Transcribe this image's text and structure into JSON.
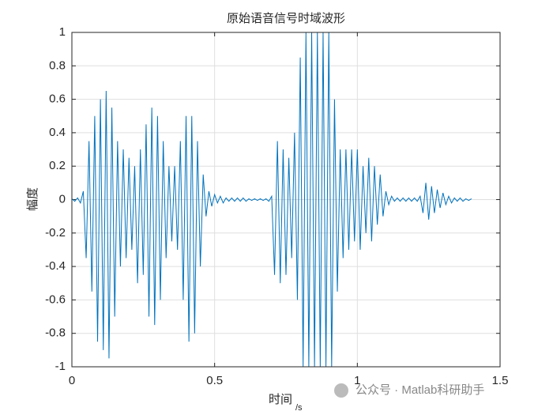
{
  "chart_data": {
    "type": "line",
    "title": "原始语音信号时域波形",
    "xlabel": "时间",
    "xlabel_subscript": "/s",
    "ylabel": "幅度",
    "color": "#0072bd",
    "grid": true,
    "xlim": [
      0,
      1.5
    ],
    "xticks": [
      0,
      0.5,
      1,
      1.5
    ],
    "ylim": [
      -1,
      1
    ],
    "yticks": [
      -1,
      -0.8,
      -0.6,
      -0.4,
      -0.2,
      0,
      0.2,
      0.4,
      0.6,
      0.8,
      1
    ],
    "x": [
      0,
      0.01,
      0.02,
      0.03,
      0.04,
      0.05,
      0.06,
      0.07,
      0.08,
      0.09,
      0.1,
      0.11,
      0.12,
      0.13,
      0.14,
      0.15,
      0.16,
      0.17,
      0.18,
      0.19,
      0.2,
      0.21,
      0.22,
      0.23,
      0.24,
      0.25,
      0.26,
      0.27,
      0.28,
      0.29,
      0.3,
      0.31,
      0.32,
      0.33,
      0.34,
      0.35,
      0.36,
      0.37,
      0.38,
      0.39,
      0.4,
      0.41,
      0.42,
      0.43,
      0.44,
      0.45,
      0.46,
      0.47,
      0.48,
      0.49,
      0.5,
      0.51,
      0.52,
      0.53,
      0.54,
      0.55,
      0.56,
      0.57,
      0.58,
      0.59,
      0.6,
      0.61,
      0.62,
      0.63,
      0.64,
      0.65,
      0.66,
      0.67,
      0.68,
      0.69,
      0.7,
      0.71,
      0.72,
      0.73,
      0.74,
      0.75,
      0.76,
      0.77,
      0.78,
      0.79,
      0.8,
      0.81,
      0.82,
      0.83,
      0.84,
      0.85,
      0.86,
      0.87,
      0.88,
      0.89,
      0.9,
      0.91,
      0.92,
      0.93,
      0.94,
      0.95,
      0.96,
      0.97,
      0.98,
      0.99,
      1,
      1.01,
      1.02,
      1.03,
      1.04,
      1.05,
      1.06,
      1.07,
      1.08,
      1.09,
      1.1,
      1.11,
      1.12,
      1.13,
      1.14,
      1.15,
      1.16,
      1.17,
      1.18,
      1.19,
      1.2,
      1.21,
      1.22,
      1.23,
      1.24,
      1.25,
      1.26,
      1.27,
      1.28,
      1.29,
      1.3,
      1.31,
      1.32,
      1.33,
      1.34,
      1.35,
      1.36,
      1.37,
      1.38,
      1.39,
      1.4
    ],
    "values": [
      0.005,
      -0.01,
      0.01,
      -0.02,
      0.05,
      -0.35,
      0.35,
      -0.55,
      0.5,
      -0.85,
      0.6,
      -0.9,
      0.65,
      -0.95,
      0.55,
      -0.7,
      0.35,
      -0.4,
      0.3,
      -0.35,
      0.25,
      -0.3,
      0.2,
      -0.5,
      0.3,
      -0.45,
      0.45,
      -0.7,
      0.55,
      -0.75,
      0.5,
      -0.6,
      0.35,
      -0.35,
      0.2,
      -0.25,
      0.2,
      -0.3,
      0.35,
      -0.6,
      0.5,
      -0.85,
      0.5,
      -0.8,
      0.35,
      -0.4,
      0.15,
      -0.1,
      0.05,
      -0.04,
      0.03,
      -0.02,
      0.02,
      -0.02,
      0.01,
      -0.01,
      0.01,
      -0.01,
      0.01,
      -0.01,
      0.01,
      -0.01,
      0.005,
      -0.005,
      0.005,
      -0.005,
      0.005,
      -0.005,
      0.005,
      -0.01,
      0.02,
      -0.45,
      0.35,
      -0.5,
      0.3,
      -0.45,
      0.25,
      -0.35,
      0.4,
      -0.6,
      0.85,
      -1,
      1,
      -1,
      1,
      -1,
      1,
      -1,
      1,
      -1,
      1,
      -1,
      0.6,
      -0.55,
      0.3,
      -0.35,
      0.3,
      -0.3,
      0.3,
      -0.25,
      0.3,
      -0.3,
      0.2,
      -0.2,
      0.25,
      -0.25,
      0.2,
      -0.15,
      0.15,
      -0.1,
      0.05,
      -0.03,
      0.02,
      -0.01,
      0.01,
      -0.01,
      0.01,
      -0.01,
      0.01,
      -0.01,
      0.01,
      -0.01,
      0.02,
      -0.08,
      0.1,
      -0.12,
      0.08,
      -0.08,
      0.06,
      -0.05,
      0.04,
      -0.03,
      0.02,
      -0.02,
      0.01,
      -0.01,
      0.01,
      -0.01,
      0.005,
      -0.005,
      0.005
    ]
  },
  "watermark": "公众号 · Matlab科研助手"
}
